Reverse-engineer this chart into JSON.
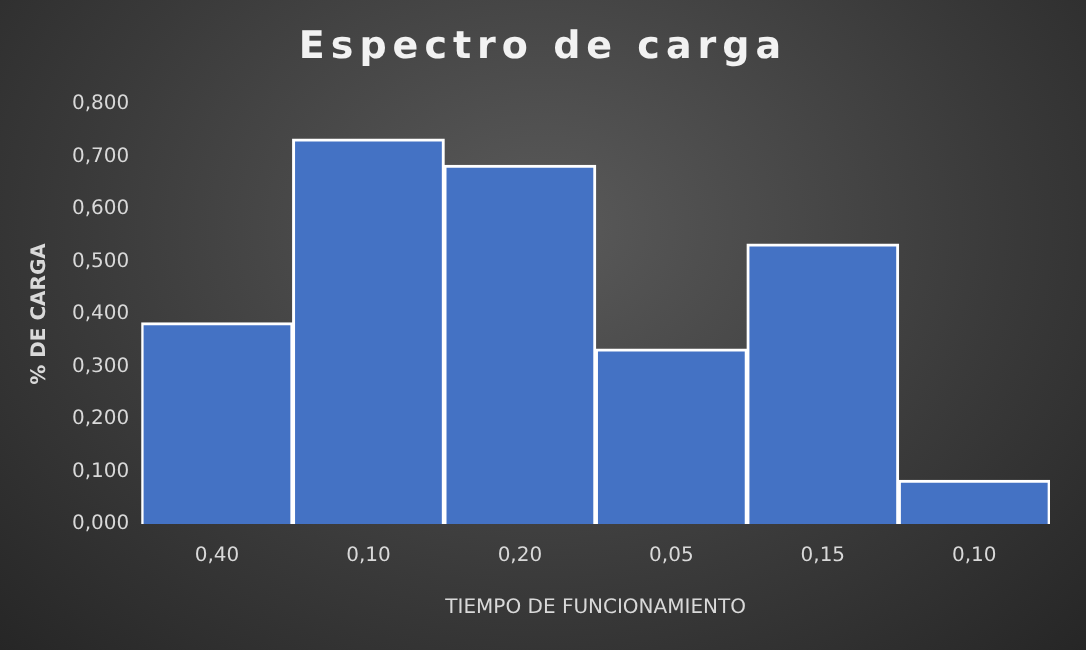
{
  "chart_data": {
    "type": "bar",
    "title": "Espectro de carga",
    "xlabel": "TIEMPO DE FUNCIONAMIENTO",
    "ylabel": "% DE CARGA",
    "categories": [
      "0,40",
      "0,10",
      "0,20",
      "0,05",
      "0,15",
      "0,10"
    ],
    "values": [
      0.383,
      0.733,
      0.683,
      0.333,
      0.533,
      0.083
    ],
    "color": "#4472c4",
    "ylim": [
      0,
      0.8
    ],
    "yticks": [
      {
        "value": 0,
        "label": "0,000"
      },
      {
        "value": 0.1,
        "label": "0,100"
      },
      {
        "value": 0.2,
        "label": "0,200"
      },
      {
        "value": 0.3,
        "label": "0,300"
      },
      {
        "value": 0.4,
        "label": "0,400"
      },
      {
        "value": 0.5,
        "label": "0,500"
      },
      {
        "value": 0.6,
        "label": "0,600"
      },
      {
        "value": 0.7,
        "label": "0,700"
      },
      {
        "value": 0.8,
        "label": "0,800"
      }
    ],
    "grid": false,
    "legend": false
  }
}
